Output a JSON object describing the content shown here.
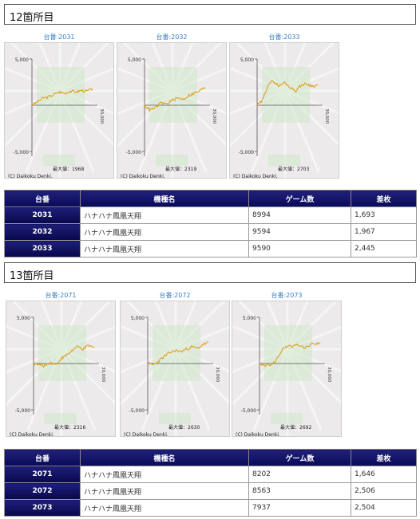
{
  "sections": [
    {
      "title": "12箇所目",
      "charts": [
        {
          "label": "台番:2031",
          "ymax": "5,000",
          "ymin": "-5,000",
          "xend": "30,000",
          "maxlabel": "最大値：1968",
          "copyright": "(C) Daikoku Denki."
        },
        {
          "label": "台番:2032",
          "ymax": "5,000",
          "ymin": "-5,000",
          "xend": "30,000",
          "maxlabel": "最大値：2319",
          "copyright": "(C) Daikoku Denki."
        },
        {
          "label": "台番:2033",
          "ymax": "5,000",
          "ymin": "-5,000",
          "xend": "30,000",
          "maxlabel": "最大値：2703",
          "copyright": "(C) Daikoku Denki."
        }
      ],
      "table": {
        "headers": [
          "台番",
          "機種名",
          "ゲーム数",
          "差枚"
        ],
        "rows": [
          [
            "2031",
            "ハナハナ鳳凰天翔",
            "8994",
            "1,693"
          ],
          [
            "2032",
            "ハナハナ鳳凰天翔",
            "9594",
            "1,967"
          ],
          [
            "2033",
            "ハナハナ鳳凰天翔",
            "9590",
            "2,445"
          ]
        ]
      }
    },
    {
      "title": "13箇所目",
      "charts": [
        {
          "label": "台番:2071",
          "ymax": "5,000",
          "ymin": "-5,000",
          "xend": "30,000",
          "maxlabel": "最大値：2316",
          "copyright": "(C) Daikoku Denki."
        },
        {
          "label": "台番:2072",
          "ymax": "5,000",
          "ymin": "-5,000",
          "xend": "30,000",
          "maxlabel": "最大値：2630",
          "copyright": "(C) Daikoku Denki."
        },
        {
          "label": "台番:2073",
          "ymax": "5,000",
          "ymin": "-5,000",
          "xend": "30,000",
          "maxlabel": "最大値：2692",
          "copyright": "(C) Daikoku Denki."
        }
      ],
      "table": {
        "headers": [
          "台番",
          "機種名",
          "ゲーム数",
          "差枚"
        ],
        "rows": [
          [
            "2071",
            "ハナハナ鳳凰天翔",
            "8202",
            "1,646"
          ],
          [
            "2072",
            "ハナハナ鳳凰天翔",
            "8563",
            "2,506"
          ],
          [
            "2073",
            "ハナハナ鳳凰天翔",
            "7937",
            "2,504"
          ]
        ]
      }
    }
  ],
  "colors": {
    "line": "#e0a020",
    "label": "#3a7fc0",
    "header_bg": "#0a0a5a"
  }
}
